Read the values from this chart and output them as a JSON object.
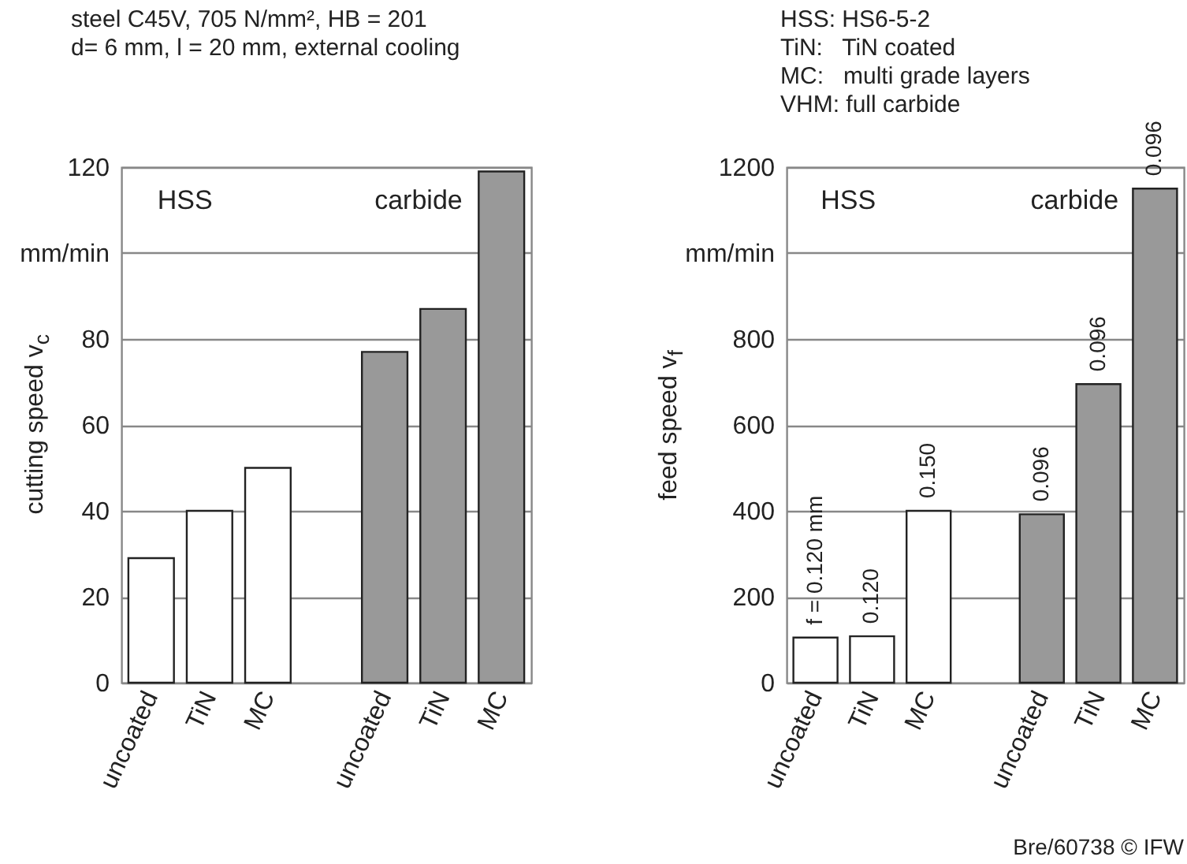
{
  "chart_data": [
    {
      "type": "bar",
      "title": "steel C45V, 705 N/mm², HB = 201",
      "subtitle": "d= 6 mm, l = 20 mm, external cooling",
      "ylabel": "cutting speed v$_{c}$",
      "categories": [
        "uncoated",
        "TiN",
        "MC",
        null,
        "uncoated",
        "TiN",
        "MC"
      ],
      "values": [
        29,
        40,
        50,
        null,
        77,
        87,
        119
      ],
      "colors": [
        "#ffffff",
        "#ffffff",
        "#ffffff",
        null,
        "#999999",
        "#999999",
        "#999999"
      ],
      "ylim": [
        0,
        120
      ],
      "yticks": [
        0,
        20,
        40,
        60,
        80,
        {
          "value": 100,
          "label": "mm/min"
        },
        120
      ],
      "grid": "y",
      "annotations": [
        "HSS",
        "carbide"
      ]
    },
    {
      "type": "bar",
      "title": "HSS: HS6-5-2\nTiN:   TiN coated\nMC:   multi grade layers\nVHM: full carbide",
      "ylabel": "feed speed v$_{f}$",
      "categories": [
        "uncoated",
        "TiN",
        "MC",
        null,
        "uncoated",
        "TiN",
        "MC"
      ],
      "values": [
        105,
        108,
        400,
        null,
        392,
        695,
        1150
      ],
      "colors": [
        "#ffffff",
        "#ffffff",
        "#ffffff",
        null,
        "#999999",
        "#999999",
        "#999999"
      ],
      "ylim": [
        0,
        1200
      ],
      "yticks": [
        0,
        200,
        400,
        600,
        800,
        {
          "value": 1000,
          "label": "mm/min"
        },
        1200
      ],
      "grid": "y",
      "annotations": [
        "HSS",
        "carbide",
        "0.096",
        "0.096",
        "0.096",
        "Bre/60738 © IFW",
        {
          "text": "f = 0.120 mm",
          "x": "uncoated",
          "y": 105
        },
        {
          "text": "0.120",
          "x": "TiN",
          "y": 108
        },
        {
          "text": "0.150",
          "x": "MC",
          "y": 400
        }
      ]
    }
  ]
}
